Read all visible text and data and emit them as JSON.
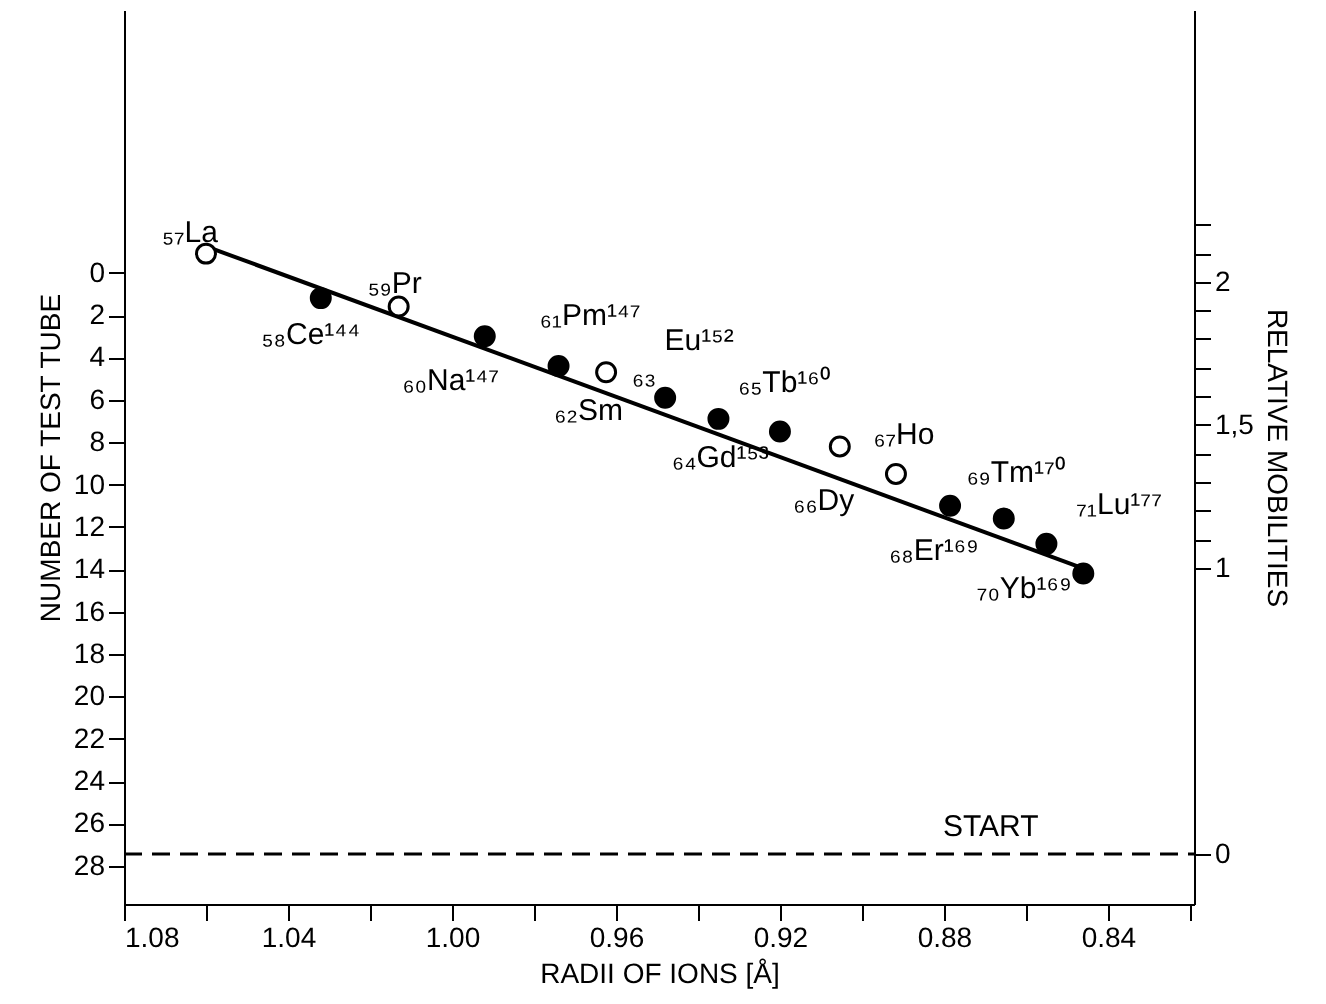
{
  "chart_data": {
    "type": "scatter",
    "xlabel": "RADII OF IONS [Å]",
    "ylabel": "NUMBER OF TEST TUBE",
    "y2label": "RELATIVE MOBILITIES",
    "xlim": [
      1.08,
      0.819
    ],
    "xticks": [
      1.08,
      {
        "value": 1.06,
        "label": null
      },
      1.04,
      {
        "value": 1.02,
        "label": null
      },
      {
        "value": 1.0,
        "label": "1.00"
      },
      {
        "value": 0.98,
        "label": null
      },
      0.96,
      {
        "value": 0.94,
        "label": null
      },
      0.92,
      {
        "value": 0.9,
        "label": null
      },
      0.88,
      {
        "value": 0.86,
        "label": null
      },
      0.84,
      {
        "value": 0.82,
        "label": null
      }
    ],
    "ylim": [
      29.8,
      -12.4
    ],
    "yticks": [
      0,
      2,
      4,
      6,
      8,
      10,
      12,
      14,
      16,
      18,
      20,
      22,
      24,
      26,
      28
    ],
    "y2lim": [
      -0.175,
      2.95
    ],
    "y2ticks": [
      0,
      1,
      {
        "value": 1.1,
        "label": null
      },
      {
        "value": 1.2,
        "label": null
      },
      {
        "value": 1.3,
        "label": null
      },
      {
        "value": 1.4,
        "label": null
      },
      {
        "value": 1.5,
        "label": "1,5"
      },
      {
        "value": 1.6,
        "label": null
      },
      {
        "value": 1.7,
        "label": null
      },
      {
        "value": 1.8,
        "label": null
      },
      {
        "value": 1.9,
        "label": null
      },
      2,
      {
        "value": 2.1,
        "label": null
      },
      {
        "value": 2.2,
        "label": null
      }
    ],
    "grid": false,
    "marker": "circle",
    "series": [
      {
        "type": "line",
        "marker": "none",
        "color": "#000000",
        "x": [
          1.058,
          0.8454
        ],
        "values": [
          -1.1,
          14.0
        ]
      },
      {
        "color": "#000000",
        "x": [
          1.032,
          0.992,
          0.974,
          0.948,
          0.935,
          0.92,
          0.8785,
          0.8654,
          0.855,
          0.846
        ],
        "values": [
          1.2,
          3.0,
          4.4,
          5.9,
          6.9,
          7.5,
          11.0,
          11.6,
          12.8,
          14.2
        ]
      },
      {
        "color": "#ffffff",
        "x": [
          1.06,
          1.013,
          0.9624,
          0.9054,
          0.8917
        ],
        "values": [
          -0.9,
          1.6,
          4.7,
          8.2,
          9.5
        ]
      }
    ],
    "ref_lines": [
      {
        "axis": "y2",
        "value": 0,
        "label": "START",
        "line_style": "dashed",
        "color": "#000000"
      }
    ],
    "annotations": [
      {
        "text": "₅₇La",
        "x": 1.06,
        "y": -0.9
      },
      {
        "text": "₅₈Ce¹⁴⁴",
        "x": 1.032,
        "y": 1.2
      },
      {
        "text": "₅₉Pr",
        "x": 1.013,
        "y": 1.6
      },
      {
        "text": "₆₀Na¹⁴⁷",
        "x": 0.992,
        "y": 3.0
      },
      {
        "text": "₆₁Pm¹⁴⁷",
        "x": 0.9663,
        "y": 5.4
      },
      {
        "text": "₆₂Sm",
        "x": 0.974,
        "y": 4.4
      },
      {
        "text": "₆₃",
        "x": 0.9624,
        "y": 4.7
      },
      {
        "text": "Eu¹⁵²",
        "x": 0.948,
        "y": 5.9
      },
      {
        "text": "₆₄Gd¹⁵³",
        "x": 0.935,
        "y": 6.9
      },
      {
        "text": "₆₅Tb¹⁶⁰",
        "x": 0.92,
        "y": 7.5
      },
      {
        "text": "₆₆Dy",
        "x": 0.9054,
        "y": 8.2
      },
      {
        "text": "₆₇Ho",
        "x": 0.8917,
        "y": 9.5
      },
      {
        "text": "₆₈Er¹⁶⁹",
        "x": 0.8785,
        "y": 11.0
      },
      {
        "text": "₆₉Tm¹⁷⁰",
        "x": 0.8654,
        "y": 11.6
      },
      {
        "text": "₇₀Yb¹⁶⁹",
        "x": 0.855,
        "y": 12.8
      },
      {
        "text": "₇₁Lu¹⁷⁷",
        "x": 0.846,
        "y": 14.2
      }
    ]
  }
}
